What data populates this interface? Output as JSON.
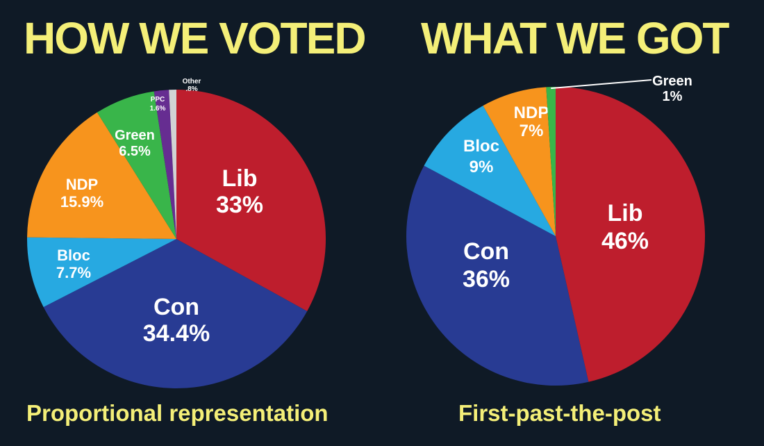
{
  "chart_data": [
    {
      "type": "pie",
      "title": "HOW WE VOTED",
      "subtitle": "Proportional representation",
      "slices": [
        {
          "party": "Lib",
          "pct_text": "33%",
          "value": 33.0,
          "color": "#be1e2d"
        },
        {
          "party": "Con",
          "pct_text": "34.4%",
          "value": 34.4,
          "color": "#283b93"
        },
        {
          "party": "Bloc",
          "pct_text": "7.7%",
          "value": 7.7,
          "color": "#27a9e1"
        },
        {
          "party": "NDP",
          "pct_text": "15.9%",
          "value": 15.9,
          "color": "#f7941d"
        },
        {
          "party": "Green",
          "pct_text": "6.5%",
          "value": 6.5,
          "color": "#39b54a"
        },
        {
          "party": "PPC",
          "pct_text": "1.6%",
          "value": 1.6,
          "color": "#662d91"
        },
        {
          "party": "Other",
          "pct_text": ".8%",
          "value": 0.8,
          "color": "#d1d3d4"
        }
      ]
    },
    {
      "type": "pie",
      "title": "WHAT WE GOT",
      "subtitle": "First-past-the-post",
      "slices": [
        {
          "party": "Lib",
          "pct_text": "46%",
          "value": 46,
          "color": "#be1e2d"
        },
        {
          "party": "Con",
          "pct_text": "36%",
          "value": 36,
          "color": "#283b93"
        },
        {
          "party": "Bloc",
          "pct_text": "9%",
          "value": 9,
          "color": "#27a9e1"
        },
        {
          "party": "NDP",
          "pct_text": "7%",
          "value": 7,
          "color": "#f7941d"
        },
        {
          "party": "Green",
          "pct_text": "1%",
          "value": 1,
          "color": "#39b54a"
        }
      ]
    }
  ]
}
